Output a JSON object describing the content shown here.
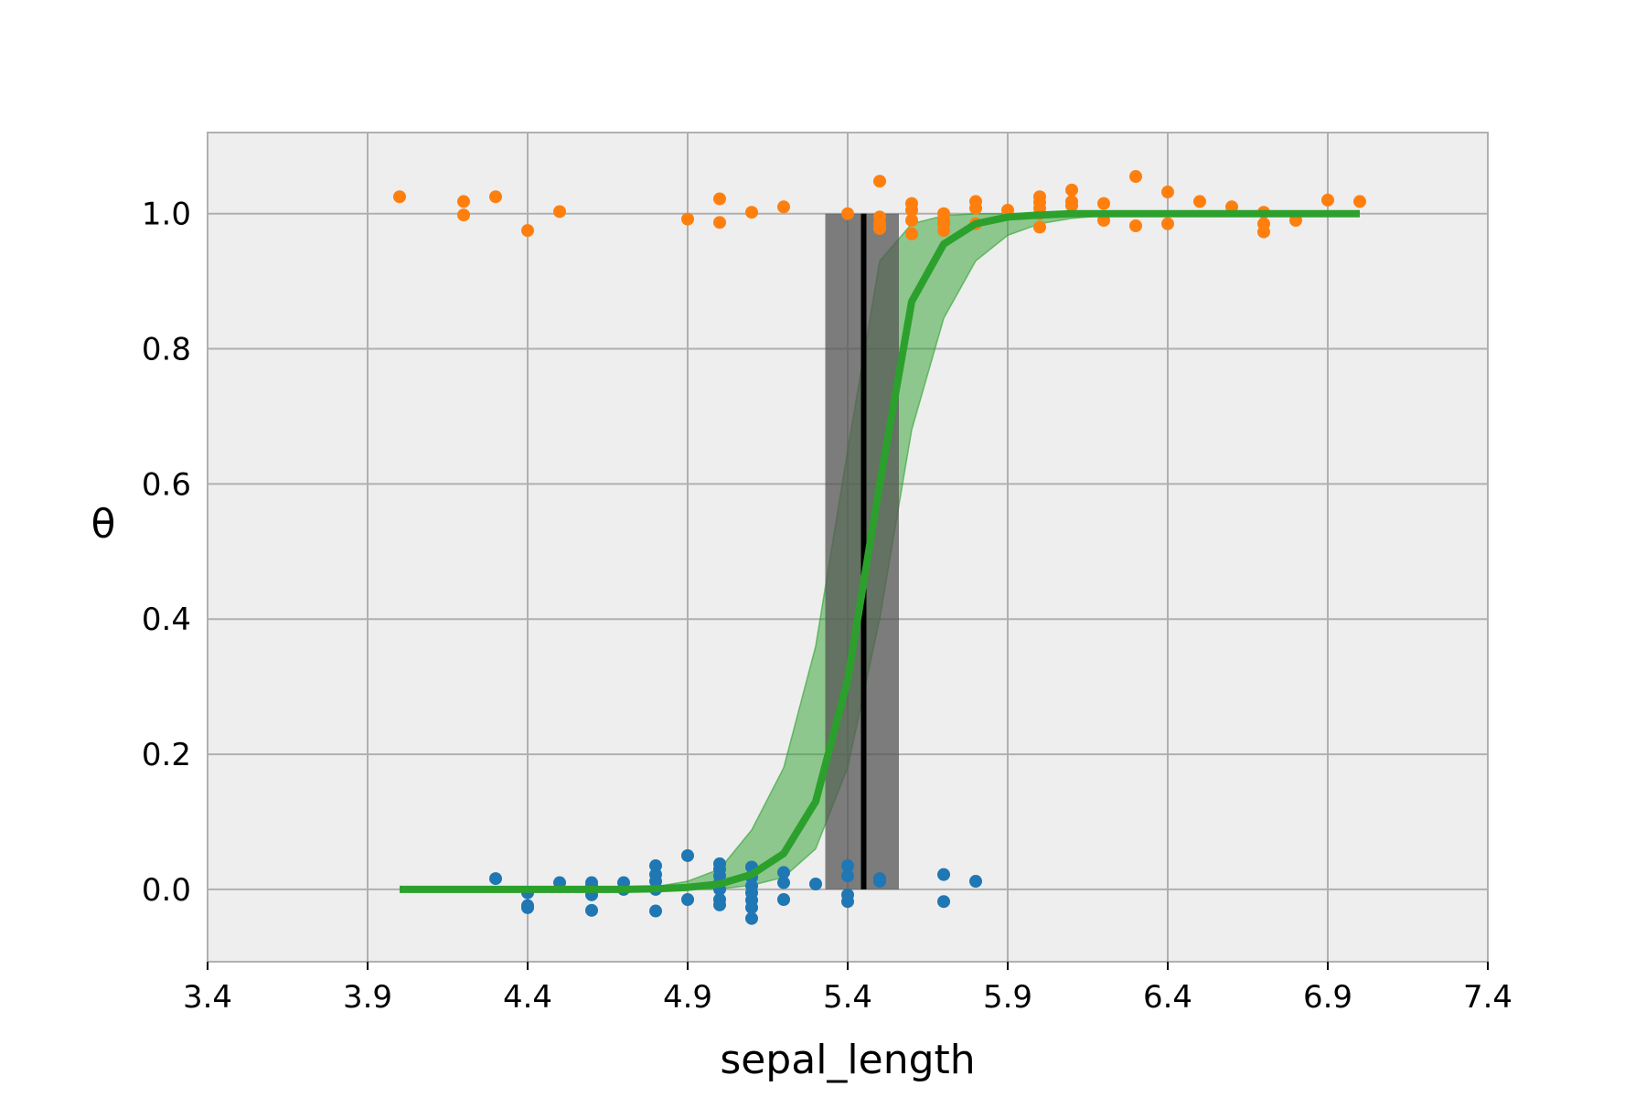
{
  "chart_data": {
    "type": "scatter",
    "xlabel": "sepal_length",
    "ylabel": "θ",
    "xlim": [
      3.4,
      7.4
    ],
    "ylim": [
      -0.107,
      1.12
    ],
    "xticks": [
      "3.4",
      "3.9",
      "4.4",
      "4.9",
      "5.4",
      "5.9",
      "6.4",
      "6.9",
      "7.4"
    ],
    "yticks": [
      "0.0",
      "0.2",
      "0.4",
      "0.6",
      "0.8",
      "1.0"
    ],
    "grid": true,
    "legend": "none",
    "background": "#eeeeee",
    "colors": {
      "class0": "#1f77b4",
      "class1": "#ff7f0e",
      "curve": "#2ca02c",
      "band": "#2ca02c",
      "boundary": "#000000",
      "boundary_band": "#555555"
    },
    "series": [
      {
        "points": [
          [
            4.3,
            0.016
          ],
          [
            4.4,
            -0.005
          ],
          [
            4.4,
            -0.027
          ],
          [
            4.4,
            -0.024
          ],
          [
            4.5,
            0.01
          ],
          [
            4.6,
            0.01
          ],
          [
            4.6,
            -0.008
          ],
          [
            4.6,
            -0.031
          ],
          [
            4.6,
            0.005
          ],
          [
            4.7,
            0.01
          ],
          [
            4.7,
            0.0
          ],
          [
            4.8,
            0.035
          ],
          [
            4.8,
            0.022
          ],
          [
            4.8,
            0.012
          ],
          [
            4.8,
            0.0
          ],
          [
            4.8,
            -0.032
          ],
          [
            4.9,
            0.05
          ],
          [
            4.9,
            -0.015
          ],
          [
            5.0,
            0.038
          ],
          [
            5.0,
            0.03
          ],
          [
            5.0,
            0.02
          ],
          [
            5.0,
            0.01
          ],
          [
            5.0,
            0.0
          ],
          [
            5.0,
            -0.015
          ],
          [
            5.0,
            -0.023
          ],
          [
            5.1,
            0.033
          ],
          [
            5.1,
            0.018
          ],
          [
            5.1,
            0.005
          ],
          [
            5.1,
            -0.005
          ],
          [
            5.1,
            -0.016
          ],
          [
            5.1,
            -0.027
          ],
          [
            5.1,
            -0.043
          ],
          [
            5.2,
            0.025
          ],
          [
            5.2,
            0.01
          ],
          [
            5.2,
            -0.015
          ],
          [
            5.3,
            0.008
          ],
          [
            5.4,
            0.035
          ],
          [
            5.4,
            0.02
          ],
          [
            5.4,
            -0.008
          ],
          [
            5.4,
            -0.018
          ],
          [
            5.5,
            0.016
          ],
          [
            5.5,
            0.012
          ],
          [
            5.7,
            0.022
          ],
          [
            5.7,
            -0.018
          ],
          [
            5.8,
            0.012
          ]
        ]
      },
      {
        "points": [
          [
            4.0,
            1.025
          ],
          [
            4.2,
            1.018
          ],
          [
            4.2,
            0.998
          ],
          [
            4.3,
            1.025
          ],
          [
            4.4,
            0.975
          ],
          [
            4.5,
            1.003
          ],
          [
            4.9,
            0.992
          ],
          [
            5.0,
            1.022
          ],
          [
            5.0,
            0.987
          ],
          [
            5.1,
            1.002
          ],
          [
            5.2,
            1.01
          ],
          [
            5.4,
            1.0
          ],
          [
            5.5,
            1.048
          ],
          [
            5.5,
            0.995
          ],
          [
            5.5,
            0.985
          ],
          [
            5.5,
            0.978
          ],
          [
            5.6,
            1.015
          ],
          [
            5.6,
            1.005
          ],
          [
            5.6,
            0.99
          ],
          [
            5.6,
            0.97
          ],
          [
            5.7,
            1.0
          ],
          [
            5.7,
            0.99
          ],
          [
            5.7,
            0.985
          ],
          [
            5.7,
            0.975
          ],
          [
            5.8,
            1.018
          ],
          [
            5.8,
            1.008
          ],
          [
            5.8,
            0.985
          ],
          [
            5.9,
            1.005
          ],
          [
            6.0,
            1.025
          ],
          [
            6.0,
            1.017
          ],
          [
            6.0,
            1.008
          ],
          [
            6.0,
            1.0
          ],
          [
            6.0,
            0.98
          ],
          [
            6.1,
            1.035
          ],
          [
            6.1,
            1.018
          ],
          [
            6.1,
            1.012
          ],
          [
            6.2,
            1.015
          ],
          [
            6.2,
            0.99
          ],
          [
            6.3,
            1.055
          ],
          [
            6.3,
            0.982
          ],
          [
            6.4,
            1.032
          ],
          [
            6.4,
            0.985
          ],
          [
            6.5,
            1.018
          ],
          [
            6.6,
            1.01
          ],
          [
            6.7,
            1.002
          ],
          [
            6.7,
            0.985
          ],
          [
            6.7,
            0.973
          ],
          [
            6.8,
            0.99
          ],
          [
            6.9,
            1.02
          ],
          [
            7.0,
            1.018
          ]
        ]
      }
    ],
    "mean_curve": {
      "x": [
        4.0,
        4.1,
        4.2,
        4.3,
        4.4,
        4.5,
        4.6,
        4.7,
        4.8,
        4.9,
        5.0,
        5.1,
        5.2,
        5.3,
        5.4,
        5.5,
        5.6,
        5.7,
        5.8,
        5.9,
        6.0,
        6.1,
        6.2,
        6.3,
        6.4,
        6.5,
        6.6,
        6.7,
        6.8,
        6.9,
        7.0
      ],
      "y": [
        0.0,
        0.0,
        0.0,
        0.0,
        0.0,
        0.0,
        0.0,
        0.0,
        0.001,
        0.003,
        0.008,
        0.022,
        0.053,
        0.13,
        0.31,
        0.6,
        0.87,
        0.955,
        0.985,
        0.995,
        0.998,
        1.0,
        1.0,
        1.0,
        1.0,
        1.0,
        1.0,
        1.0,
        1.0,
        1.0,
        1.0
      ]
    },
    "hdi_band": {
      "x": [
        4.0,
        4.1,
        4.2,
        4.3,
        4.4,
        4.5,
        4.6,
        4.7,
        4.8,
        4.9,
        5.0,
        5.1,
        5.2,
        5.3,
        5.4,
        5.5,
        5.6,
        5.7,
        5.8,
        5.9,
        6.0,
        6.1,
        6.2,
        6.3,
        6.4,
        6.5,
        6.6,
        6.7,
        6.8,
        6.9,
        7.0
      ],
      "lower": [
        0.0,
        0.0,
        0.0,
        0.0,
        0.0,
        0.0,
        0.0,
        0.0,
        0.0,
        0.0,
        0.001,
        0.006,
        0.018,
        0.06,
        0.18,
        0.4,
        0.68,
        0.845,
        0.93,
        0.968,
        0.985,
        0.993,
        0.997,
        0.999,
        1.0,
        1.0,
        1.0,
        1.0,
        1.0,
        1.0,
        1.0
      ],
      "upper": [
        0.0,
        0.0,
        0.0,
        0.0,
        0.0,
        0.0,
        0.0,
        0.001,
        0.004,
        0.012,
        0.03,
        0.088,
        0.18,
        0.36,
        0.65,
        0.93,
        0.985,
        0.997,
        1.0,
        1.0,
        1.0,
        1.0,
        1.0,
        1.0,
        1.0,
        1.0,
        1.0,
        1.0,
        1.0,
        1.0,
        1.0
      ]
    },
    "decision_boundary": {
      "x": 5.45,
      "hdi": [
        5.33,
        5.56
      ]
    }
  }
}
